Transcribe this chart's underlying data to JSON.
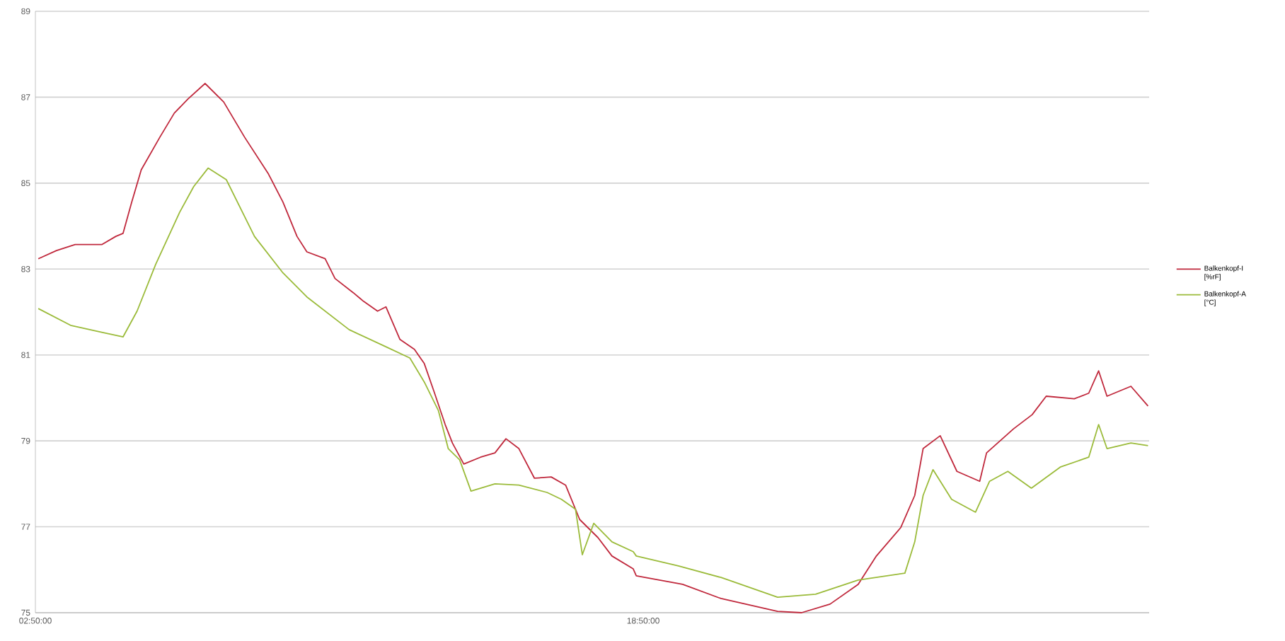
{
  "chart_data": {
    "type": "line",
    "xlim": [
      2.8333,
      32.15
    ],
    "ylim": [
      75,
      89
    ],
    "xticks": [
      {
        "value": 2.8333,
        "label": "02:50:00"
      },
      {
        "value": 18.8333,
        "label": "18:50:00"
      }
    ],
    "yticks": [
      75,
      77,
      79,
      81,
      83,
      85,
      87,
      89
    ],
    "grid": "y",
    "legend": "right",
    "marker": "none",
    "line_style": "solid",
    "series": [
      {
        "name": "Balkenkopf-I [%rF]",
        "color": "#c0283c",
        "x": [
          2.91,
          3.39,
          3.88,
          4.58,
          4.95,
          5.14,
          5.37,
          5.62,
          6.11,
          6.49,
          6.85,
          7.3,
          7.79,
          8.34,
          8.97,
          9.35,
          9.72,
          9.98,
          10.46,
          10.72,
          11.2,
          11.47,
          11.84,
          12.06,
          12.43,
          12.81,
          13.07,
          13.33,
          13.62,
          13.81,
          14.11,
          14.55,
          14.93,
          15.22,
          15.56,
          15.97,
          16.41,
          16.79,
          17.16,
          17.64,
          18.01,
          18.57,
          18.65,
          19.87,
          20.88,
          22.37,
          23.0,
          23.75,
          24.49,
          24.97,
          25.61,
          25.98,
          26.2,
          26.65,
          27.09,
          27.69,
          27.87,
          28.58,
          29.07,
          29.44,
          30.18,
          30.56,
          30.82,
          31.04,
          31.67,
          32.12
        ],
        "values": [
          83.24,
          83.43,
          83.57,
          83.57,
          83.76,
          83.83,
          84.56,
          85.31,
          86.07,
          86.63,
          86.96,
          87.32,
          86.89,
          86.07,
          85.21,
          84.56,
          83.76,
          83.4,
          83.24,
          82.78,
          82.45,
          82.25,
          82.02,
          82.12,
          81.36,
          81.13,
          80.8,
          80.14,
          79.38,
          78.95,
          78.46,
          78.62,
          78.72,
          79.05,
          78.82,
          78.13,
          78.16,
          77.97,
          77.17,
          76.75,
          76.32,
          76.02,
          75.86,
          75.66,
          75.33,
          75.03,
          75.0,
          75.2,
          75.66,
          76.32,
          76.98,
          77.73,
          78.82,
          79.12,
          78.29,
          78.06,
          78.72,
          79.28,
          79.61,
          80.04,
          79.98,
          80.11,
          80.63,
          80.04,
          80.27,
          79.81
        ]
      },
      {
        "name": "Balkenkopf-A [°C]",
        "color": "#9bbb3a",
        "x": [
          2.91,
          3.76,
          4.62,
          5.14,
          5.51,
          6.0,
          6.63,
          7.0,
          7.38,
          7.86,
          8.6,
          9.35,
          9.98,
          11.09,
          12.06,
          12.69,
          13.07,
          13.44,
          13.7,
          14.0,
          14.3,
          14.93,
          15.56,
          16.3,
          16.68,
          17.05,
          17.23,
          17.53,
          18.01,
          18.57,
          18.65,
          19.76,
          20.88,
          22.37,
          23.37,
          24.49,
          25.72,
          25.98,
          26.2,
          26.46,
          26.95,
          27.58,
          27.95,
          28.43,
          29.05,
          29.81,
          30.56,
          30.82,
          31.04,
          31.67,
          32.12
        ],
        "values": [
          82.08,
          81.69,
          81.52,
          81.42,
          82.02,
          83.11,
          84.32,
          84.92,
          85.35,
          85.08,
          83.76,
          82.91,
          82.35,
          81.59,
          81.19,
          80.93,
          80.37,
          79.71,
          78.82,
          78.56,
          77.83,
          78.0,
          77.97,
          77.8,
          77.64,
          77.41,
          76.35,
          77.08,
          76.65,
          76.42,
          76.32,
          76.09,
          75.82,
          75.36,
          75.43,
          75.76,
          75.92,
          76.65,
          77.73,
          78.33,
          77.64,
          77.34,
          78.06,
          78.29,
          77.9,
          78.39,
          78.62,
          79.38,
          78.82,
          78.95,
          78.89
        ]
      }
    ]
  }
}
